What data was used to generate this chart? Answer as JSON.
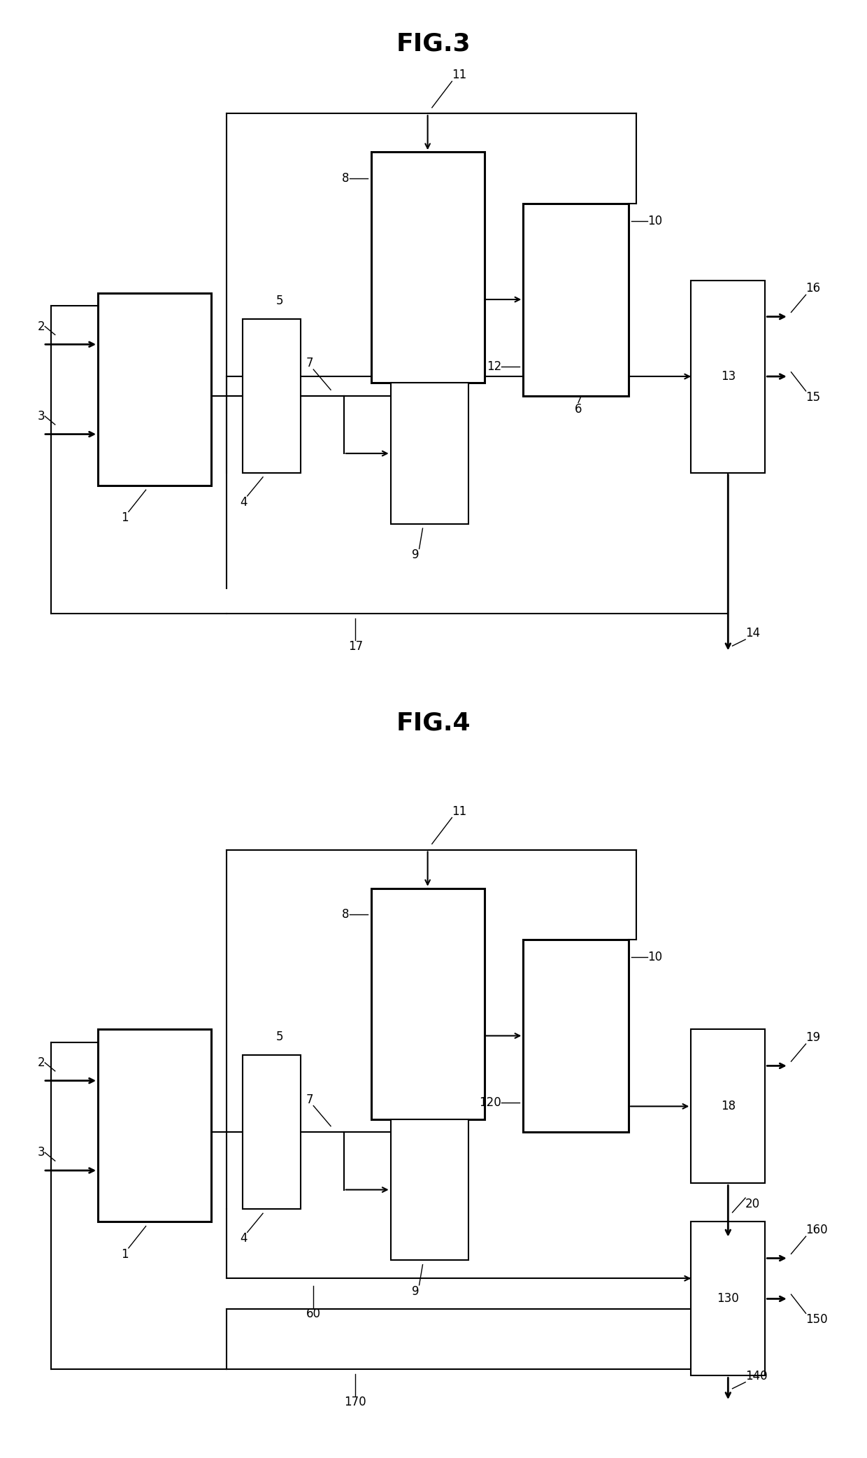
{
  "fig3_title": "FIG.3",
  "fig4_title": "FIG.4",
  "bg_color": "#ffffff",
  "label_fontsize": 12,
  "title_fontsize": 26,
  "lw_thick": 2.2,
  "lw_thin": 1.5,
  "lw_arr": 2.0
}
